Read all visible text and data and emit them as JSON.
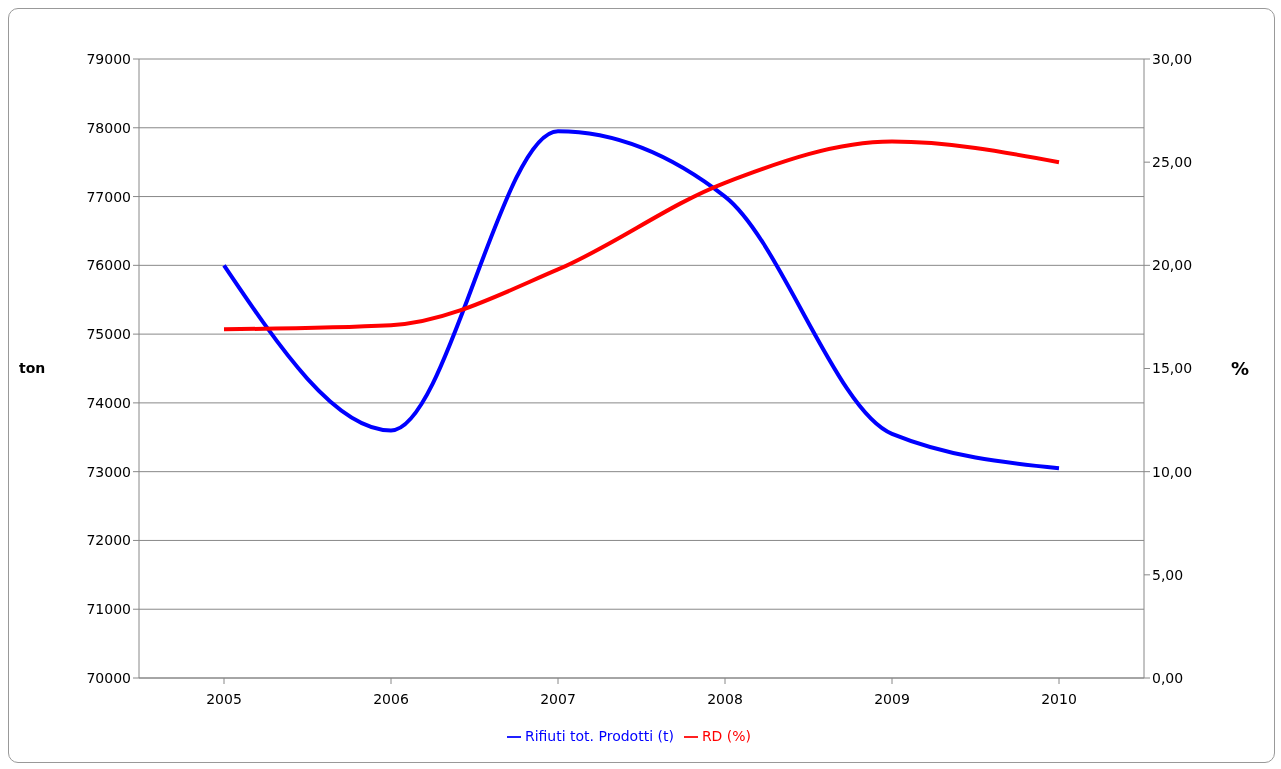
{
  "chart_data": {
    "type": "line",
    "categories": [
      "2005",
      "2006",
      "2007",
      "2008",
      "2009",
      "2010"
    ],
    "series": [
      {
        "name": "Rifiuti tot. Prodotti (t)",
        "color": "#0000ff",
        "values": [
          76000,
          73600,
          77950,
          77000,
          73550,
          73050
        ]
      },
      {
        "name": "RD (%)",
        "color": "#ff0000",
        "axis": "y2",
        "values": [
          16.9,
          17.1,
          19.8,
          24.0,
          26.0,
          25.0
        ]
      }
    ],
    "ylabel": "ton",
    "y2label": "%",
    "ylim": [
      70000,
      79000
    ],
    "yticks": [
      70000,
      71000,
      72000,
      73000,
      74000,
      75000,
      76000,
      77000,
      78000,
      79000
    ],
    "y2lim": [
      0,
      30
    ],
    "y2ticks": [
      {
        "value": 0,
        "label": "0,00"
      },
      {
        "value": 5,
        "label": "5,00"
      },
      {
        "value": 10,
        "label": "10,00"
      },
      {
        "value": 15,
        "label": "15,00"
      },
      {
        "value": 20,
        "label": "20,00"
      },
      {
        "value": 25,
        "label": "25,00"
      },
      {
        "value": 30,
        "label": "30,00"
      }
    ],
    "grid": "y",
    "legend": "bottom",
    "marker": "none",
    "line_style": "solid"
  }
}
